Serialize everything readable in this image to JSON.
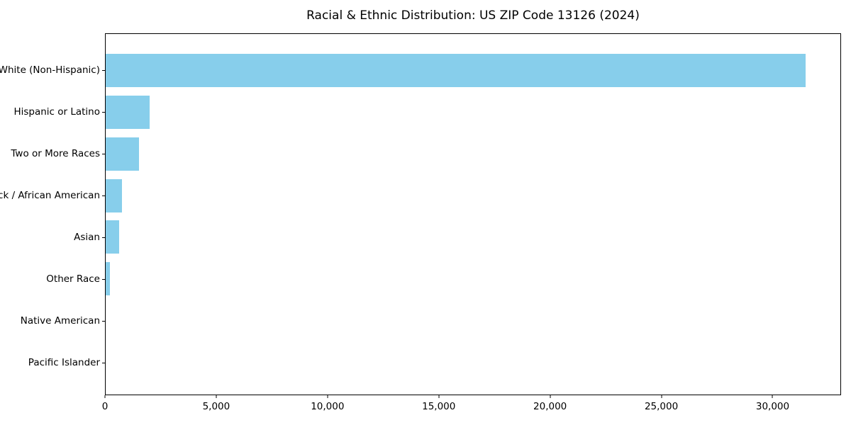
{
  "chart_data": {
    "type": "bar",
    "orientation": "horizontal",
    "title": "Racial & Ethnic Distribution: US ZIP Code 13126 (2024)",
    "categories": [
      "White (Non-Hispanic)",
      "Hispanic or Latino",
      "Two or More Races",
      "Black / African American",
      "Asian",
      "Other Race",
      "Native American",
      "Pacific Islander"
    ],
    "values": [
      31500,
      1980,
      1510,
      750,
      600,
      200,
      0,
      0
    ],
    "xlabel": "",
    "ylabel": "",
    "xlim": [
      0,
      33075
    ],
    "xticks": [
      0,
      5000,
      10000,
      15000,
      20000,
      25000,
      30000
    ],
    "xtick_labels": [
      "0",
      "5,000",
      "10,000",
      "15,000",
      "20,000",
      "25,000",
      "30,000"
    ],
    "bar_color": "#87CEEB",
    "spine_color": "#000000",
    "grid": false,
    "legend": null
  }
}
